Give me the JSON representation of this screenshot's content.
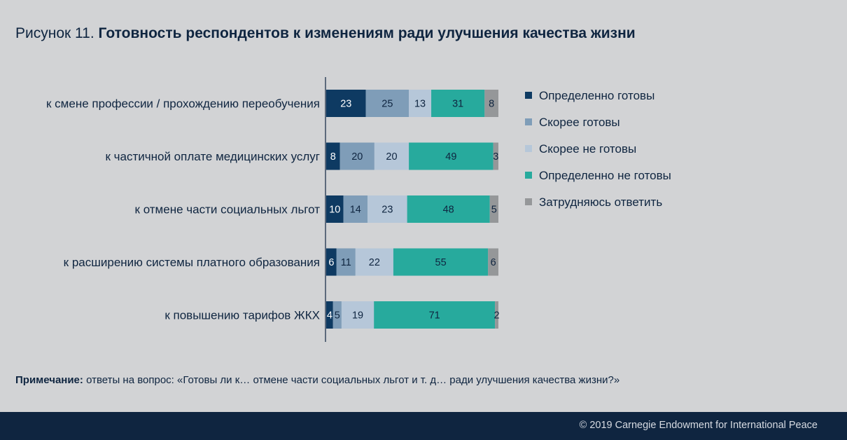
{
  "figure": {
    "number_label": "Рисунок 11.",
    "title": "Готовность респондентов к изменениям ради улучшения качества жизни"
  },
  "chart_data": {
    "type": "bar",
    "orientation": "horizontal",
    "stacked": true,
    "title": "Готовность респондентов к изменениям ради улучшения качества жизни",
    "categories": [
      "к смене профессии  / прохождению переобучения",
      "к частичной оплате медицинских услуг",
      "к отмене части социальных льгот",
      "к расширению системы платного образования",
      "к повышению тарифов ЖКХ"
    ],
    "series": [
      {
        "name": "Определенно готовы",
        "color": "#0e3a62",
        "label_color": "#ffffff",
        "values": [
          23,
          8,
          10,
          6,
          4
        ]
      },
      {
        "name": "Скорее готовы",
        "color": "#7f9db8",
        "label_color": "#0f2540",
        "values": [
          25,
          20,
          14,
          11,
          5
        ]
      },
      {
        "name": "Скорее не готовы",
        "color": "#b6c7d9",
        "label_color": "#0f2540",
        "values": [
          13,
          20,
          23,
          22,
          19
        ]
      },
      {
        "name": "Определенно не готовы",
        "color": "#27aa9d",
        "label_color": "#0f2540",
        "values": [
          31,
          49,
          48,
          55,
          71
        ]
      },
      {
        "name": "Затрудняюсь ответить",
        "color": "#959799",
        "label_color": "#0f2540",
        "values": [
          8,
          3,
          5,
          6,
          2
        ]
      }
    ],
    "xlim": [
      0,
      100
    ],
    "legend_position": "right",
    "grid": false
  },
  "note": {
    "label": "Примечание:",
    "text": " ответы на вопрос: «Готовы ли к… отмене части социальных льгот и т. д… ради улучшения качества жизни?»"
  },
  "footer": {
    "copyright": "© 2019 Carnegie Endowment for International Peace"
  },
  "colors": {
    "background": "#d2d3d5",
    "footer": "#0f2540",
    "text": "#0f2540"
  }
}
